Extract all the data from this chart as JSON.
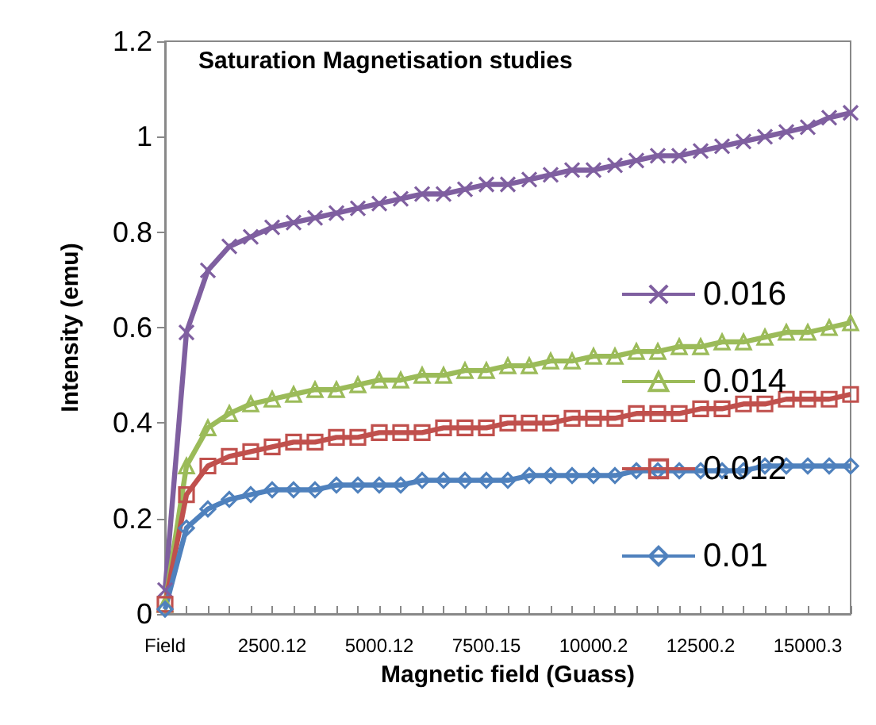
{
  "chart_data": {
    "type": "line",
    "title": "Saturation Magnetisation studies",
    "xlabel": "Magnetic field (Guass)",
    "ylabel": "Intensity (emu)",
    "categories": [
      "Field",
      null,
      null,
      null,
      null,
      "2500.12",
      null,
      null,
      null,
      null,
      "5000.12",
      null,
      null,
      null,
      null,
      "7500.15",
      null,
      null,
      null,
      null,
      "10000.2",
      null,
      null,
      null,
      null,
      "12500.2",
      null,
      null,
      null,
      null,
      "15000.3",
      null,
      null
    ],
    "ylim": [
      0,
      1.2
    ],
    "yticks": [
      0,
      0.2,
      0.4,
      0.6,
      0.8,
      1,
      1.2
    ],
    "grid": false,
    "legend": "right",
    "series": [
      {
        "name": "0.016",
        "color": "#7f5fa0",
        "marker": "cross",
        "values": [
          0.05,
          0.59,
          0.72,
          0.77,
          0.79,
          0.81,
          0.82,
          0.83,
          0.84,
          0.85,
          0.86,
          0.87,
          0.88,
          0.88,
          0.89,
          0.9,
          0.9,
          0.91,
          0.92,
          0.93,
          0.93,
          0.94,
          0.95,
          0.96,
          0.96,
          0.97,
          0.98,
          0.99,
          1.0,
          1.01,
          1.02,
          1.04,
          1.05
        ]
      },
      {
        "name": "0.014",
        "color": "#9bbb59",
        "marker": "triangle",
        "values": [
          0.02,
          0.31,
          0.39,
          0.42,
          0.44,
          0.45,
          0.46,
          0.47,
          0.47,
          0.48,
          0.49,
          0.49,
          0.5,
          0.5,
          0.51,
          0.51,
          0.52,
          0.52,
          0.53,
          0.53,
          0.54,
          0.54,
          0.55,
          0.55,
          0.56,
          0.56,
          0.57,
          0.57,
          0.58,
          0.59,
          0.59,
          0.6,
          0.61
        ]
      },
      {
        "name": "0.012",
        "color": "#c0504d",
        "marker": "square",
        "values": [
          0.02,
          0.25,
          0.31,
          0.33,
          0.34,
          0.35,
          0.36,
          0.36,
          0.37,
          0.37,
          0.38,
          0.38,
          0.38,
          0.39,
          0.39,
          0.39,
          0.4,
          0.4,
          0.4,
          0.41,
          0.41,
          0.41,
          0.42,
          0.42,
          0.42,
          0.43,
          0.43,
          0.44,
          0.44,
          0.45,
          0.45,
          0.45,
          0.46
        ]
      },
      {
        "name": "0.01",
        "color": "#4f81bd",
        "marker": "diamond",
        "values": [
          0.01,
          0.18,
          0.22,
          0.24,
          0.25,
          0.26,
          0.26,
          0.26,
          0.27,
          0.27,
          0.27,
          0.27,
          0.28,
          0.28,
          0.28,
          0.28,
          0.28,
          0.29,
          0.29,
          0.29,
          0.29,
          0.29,
          0.3,
          0.3,
          0.3,
          0.3,
          0.3,
          0.3,
          0.31,
          0.31,
          0.31,
          0.31,
          0.31
        ]
      }
    ]
  }
}
